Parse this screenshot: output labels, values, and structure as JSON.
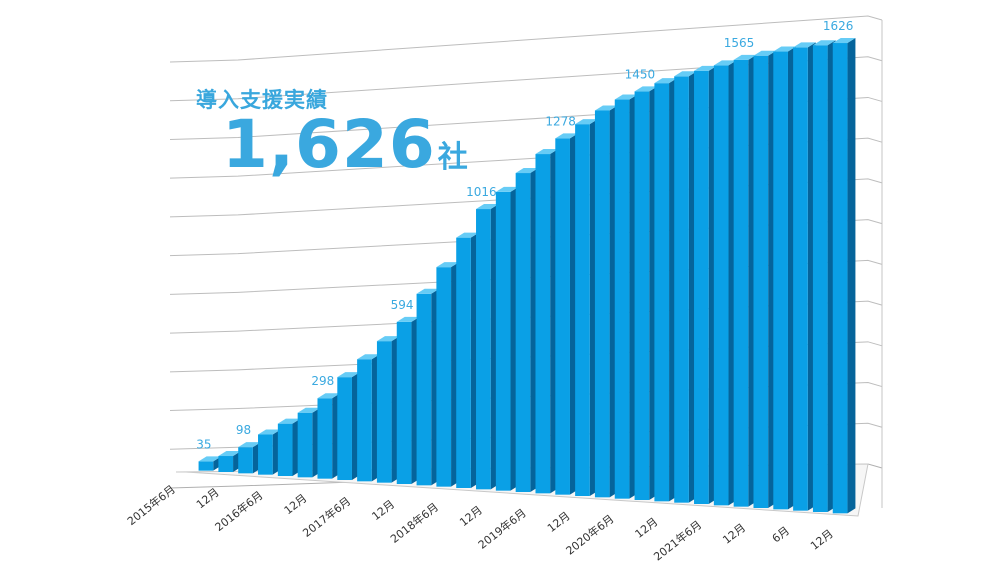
{
  "heading": "導入支援実績",
  "total": {
    "value": "1,626",
    "unit": "社"
  },
  "colors": {
    "front": "#0aa0e6",
    "side": "#05649b",
    "top": "#66ccf6",
    "accent": "#3aa8df"
  },
  "chart_data": {
    "type": "bar",
    "title": "",
    "xlabel": "",
    "ylabel": "",
    "grid": true,
    "ylim": [
      0,
      1660
    ],
    "x_tick_labels": [
      "2015年6月",
      "12月",
      "2016年6月",
      "12月",
      "2017年6月",
      "12月",
      "2018年6月",
      "12月",
      "2019年6月",
      "12月",
      "2020年6月",
      "12月",
      "2021年6月",
      "12月",
      "6月",
      "12月"
    ],
    "values": [
      35,
      60,
      98,
      150,
      195,
      240,
      298,
      380,
      450,
      520,
      594,
      700,
      800,
      910,
      1016,
      1080,
      1150,
      1220,
      1278,
      1330,
      1380,
      1420,
      1450,
      1480,
      1505,
      1525,
      1545,
      1565,
      1580,
      1595,
      1610,
      1618,
      1626
    ],
    "data_labels": [
      {
        "index": 0,
        "text": "35"
      },
      {
        "index": 2,
        "text": "98"
      },
      {
        "index": 6,
        "text": "298"
      },
      {
        "index": 10,
        "text": "594"
      },
      {
        "index": 14,
        "text": "1016"
      },
      {
        "index": 18,
        "text": "1278"
      },
      {
        "index": 22,
        "text": "1450"
      },
      {
        "index": 27,
        "text": "1565"
      },
      {
        "index": 32,
        "text": "1626"
      }
    ]
  }
}
